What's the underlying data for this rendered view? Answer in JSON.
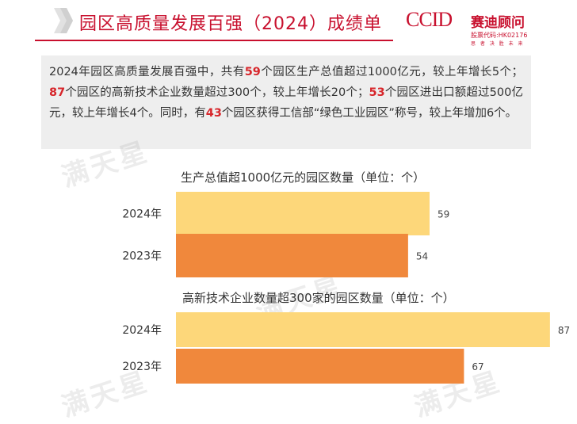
{
  "header": {
    "title": "园区高质量发展百强（2024）成绩单",
    "brand_latin": "CCID",
    "brand_name": "赛迪顾问",
    "brand_code": "股票代码:HK02176",
    "brand_slogan": "思 者 决 胜 未 来"
  },
  "summary": {
    "t1": "2024年园区高质量发展百强中，共有",
    "n1": "59",
    "t2": "个园区生产总值超过1000亿元，较上年增长5个；",
    "n2": "87",
    "t3": "个园区的高新技术企业数量超过300个，较上年增长20个；",
    "n3": "53",
    "t4": "个园区进出口额超过500亿元，较上年增长4个。同时，有",
    "n4": "43",
    "t5": "个园区获得工信部“绿色工业园区”称号，较上年增加6个。"
  },
  "watermark": "满天星",
  "colors": {
    "accent": "#c8102e",
    "bar_2024": "#fdd77a",
    "bar_2023": "#f0883c"
  },
  "chart_data": [
    {
      "type": "bar",
      "orientation": "horizontal",
      "title": "生产总值超1000亿元的园区数量（单位：个）",
      "categories": [
        "2024年",
        "2023年"
      ],
      "values": [
        59,
        54
      ]
    },
    {
      "type": "bar",
      "orientation": "horizontal",
      "title": "高新技术企业数量超300家的园区数量（单位：个）",
      "categories": [
        "2024年",
        "2023年"
      ],
      "values": [
        87,
        67
      ]
    }
  ]
}
